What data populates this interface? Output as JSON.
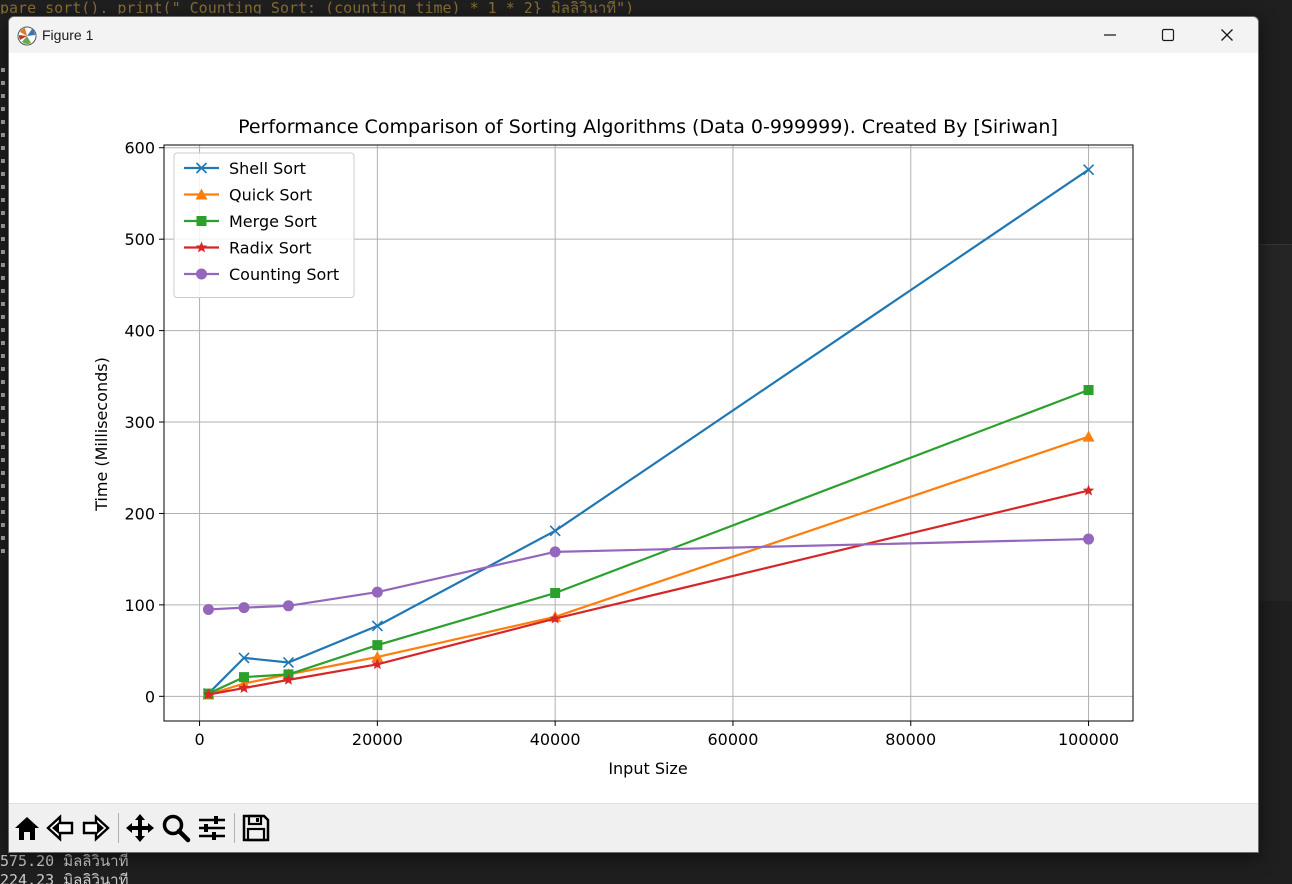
{
  "background": {
    "top_code": "pare_sort().\n  print(\"  Counting Sort: (counting_time) * 1 * 2} มิลลิวินาที\")",
    "bottom_lines": [
      "575.20 มิลลิวินาที",
      "224.23 มิลลิวินาที"
    ]
  },
  "window": {
    "title": "Figure 1",
    "app_icon": "matplotlib-icon",
    "controls": [
      "minimize-icon",
      "maximize-icon",
      "close-icon"
    ]
  },
  "toolbar": {
    "buttons": [
      {
        "name": "home-button",
        "icon": "home-icon",
        "title": "Home"
      },
      {
        "name": "back-button",
        "icon": "arrow-left-icon",
        "title": "Back"
      },
      {
        "name": "forward-button",
        "icon": "arrow-right-icon",
        "title": "Forward"
      },
      {
        "name": "pan-button",
        "icon": "move-icon",
        "title": "Pan"
      },
      {
        "name": "zoom-button",
        "icon": "magnifier-icon",
        "title": "Zoom"
      },
      {
        "name": "configure-button",
        "icon": "sliders-icon",
        "title": "Subplots"
      },
      {
        "name": "save-button",
        "icon": "floppy-disk-icon",
        "title": "Save"
      }
    ]
  },
  "chart_data": {
    "type": "line",
    "title": "Performance Comparison of Sorting Algorithms (Data 0-999999). Created By [Siriwan]",
    "xlabel": "Input Size",
    "ylabel": "Time (Milliseconds)",
    "xlim": [
      -4000,
      105000
    ],
    "ylim": [
      -27,
      603
    ],
    "xticks": [
      0,
      20000,
      40000,
      60000,
      80000,
      100000
    ],
    "yticks": [
      0,
      100,
      200,
      300,
      400,
      500,
      600
    ],
    "grid": true,
    "legend_position": "upper-left",
    "x": [
      1000,
      5000,
      10000,
      20000,
      40000,
      100000
    ],
    "series": [
      {
        "name": "Shell Sort",
        "color": "#1f77b4",
        "marker": "x",
        "values": [
          3,
          42,
          37,
          77,
          181,
          576
        ]
      },
      {
        "name": "Quick Sort",
        "color": "#ff7f0e",
        "marker": "triangle",
        "values": [
          2,
          14,
          24,
          43,
          87,
          284
        ]
      },
      {
        "name": "Merge Sort",
        "color": "#2ca02c",
        "marker": "square",
        "values": [
          3,
          21,
          24,
          56,
          113,
          335
        ]
      },
      {
        "name": "Radix Sort",
        "color": "#d62728",
        "marker": "star",
        "values": [
          2,
          9,
          18,
          35,
          85,
          225
        ]
      },
      {
        "name": "Counting Sort",
        "color": "#9467bd",
        "marker": "circle",
        "values": [
          95,
          97,
          99,
          114,
          158,
          172
        ]
      }
    ]
  }
}
